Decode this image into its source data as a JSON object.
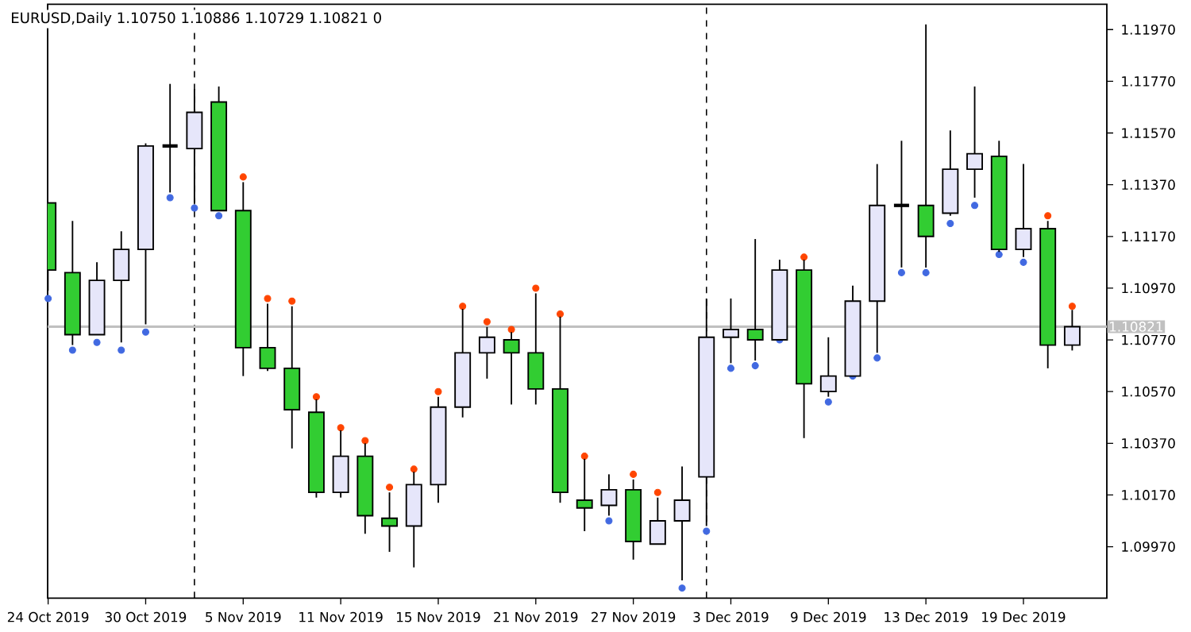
{
  "chart_data": {
    "type": "candlestick",
    "title": "EURUSD,Daily  1.10750 1.10886 1.10729 1.10821  0",
    "categories": [
      "24 Oct 2019",
      null,
      null,
      null,
      "30 Oct 2019",
      null,
      null,
      null,
      "5 Nov 2019",
      null,
      null,
      null,
      "11 Nov 2019",
      null,
      null,
      null,
      "15 Nov 2019",
      null,
      null,
      null,
      "21 Nov 2019",
      null,
      null,
      null,
      "27 Nov 2019",
      null,
      null,
      null,
      "3 Dec 2019",
      null,
      null,
      null,
      "9 Dec 2019",
      null,
      null,
      null,
      "13 Dec 2019",
      null,
      null,
      null,
      "19 Dec 2019",
      null,
      null
    ],
    "ohlc": [
      [
        1.113,
        1.113,
        1.1096,
        1.1104
      ],
      [
        1.1103,
        1.1123,
        1.1075,
        1.1079
      ],
      [
        1.1079,
        1.1107,
        1.1079,
        1.11
      ],
      [
        1.11,
        1.1119,
        1.1076,
        1.1112
      ],
      [
        1.1112,
        1.1153,
        1.1083,
        1.1152
      ],
      [
        1.1152,
        1.1176,
        1.1134,
        1.1152
      ],
      [
        1.1151,
        1.1174,
        1.113,
        1.1165
      ],
      [
        1.1169,
        1.1175,
        1.1127,
        1.1127
      ],
      [
        1.1127,
        1.1138,
        1.1063,
        1.1074
      ],
      [
        1.1074,
        1.1091,
        1.1065,
        1.1066
      ],
      [
        1.1066,
        1.109,
        1.1035,
        1.105
      ],
      [
        1.1049,
        1.1054,
        1.1016,
        1.1018
      ],
      [
        1.1018,
        1.1042,
        1.1016,
        1.1032
      ],
      [
        1.1032,
        1.1037,
        1.1002,
        1.1009
      ],
      [
        1.1008,
        1.1018,
        1.0995,
        1.1005
      ],
      [
        1.1005,
        1.1026,
        1.0989,
        1.1021
      ],
      [
        1.1021,
        1.1055,
        1.1014,
        1.1051
      ],
      [
        1.1051,
        1.1089,
        1.1047,
        1.1072
      ],
      [
        1.1072,
        1.1082,
        1.1062,
        1.1078
      ],
      [
        1.1077,
        1.108,
        1.1052,
        1.1072
      ],
      [
        1.1072,
        1.1095,
        1.1052,
        1.1058
      ],
      [
        1.1058,
        1.1086,
        1.1014,
        1.1018
      ],
      [
        1.1015,
        1.1031,
        1.1003,
        1.1012
      ],
      [
        1.1013,
        1.1025,
        1.1009,
        1.1019
      ],
      [
        1.1019,
        1.1023,
        1.0992,
        1.0999
      ],
      [
        1.0998,
        1.1016,
        1.0998,
        1.1007
      ],
      [
        1.1007,
        1.1028,
        1.0984,
        1.1015
      ],
      [
        1.1024,
        1.1093,
        1.1005,
        1.1078
      ],
      [
        1.1078,
        1.1093,
        1.1068,
        1.1081
      ],
      [
        1.1081,
        1.1116,
        1.1069,
        1.1077
      ],
      [
        1.1077,
        1.1108,
        1.1077,
        1.1104
      ],
      [
        1.1104,
        1.1108,
        1.1039,
        1.106
      ],
      [
        1.1057,
        1.1078,
        1.1055,
        1.1063
      ],
      [
        1.1063,
        1.1098,
        1.1063,
        1.1092
      ],
      [
        1.1092,
        1.1145,
        1.1072,
        1.1129
      ],
      [
        1.1129,
        1.1154,
        1.1105,
        1.1129
      ],
      [
        1.1129,
        1.1199,
        1.1105,
        1.1117
      ],
      [
        1.1126,
        1.1158,
        1.1125,
        1.1143
      ],
      [
        1.1143,
        1.1175,
        1.1132,
        1.1149
      ],
      [
        1.1148,
        1.1154,
        1.1111,
        1.1112
      ],
      [
        1.1112,
        1.1145,
        1.1109,
        1.112
      ],
      [
        1.112,
        1.1123,
        1.1066,
        1.1075
      ],
      [
        1.1075,
        1.10886,
        1.10729,
        1.10821
      ]
    ],
    "colors": [
      "#32cd32",
      "#32cd32",
      "#e6e6fa",
      "#e6e6fa",
      "#e6e6fa",
      "#000000",
      "#e6e6fa",
      "#32cd32",
      "#32cd32",
      "#32cd32",
      "#32cd32",
      "#32cd32",
      "#e6e6fa",
      "#32cd32",
      "#32cd32",
      "#e6e6fa",
      "#e6e6fa",
      "#e6e6fa",
      "#e6e6fa",
      "#32cd32",
      "#32cd32",
      "#32cd32",
      "#32cd32",
      "#e6e6fa",
      "#32cd32",
      "#e6e6fa",
      "#e6e6fa",
      "#e6e6fa",
      "#e6e6fa",
      "#32cd32",
      "#e6e6fa",
      "#32cd32",
      "#e6e6fa",
      "#e6e6fa",
      "#e6e6fa",
      "#000000",
      "#32cd32",
      "#e6e6fa",
      "#e6e6fa",
      "#32cd32",
      "#e6e6fa",
      "#32cd32",
      "#e6e6fa"
    ],
    "series": [
      {
        "type": "scatter",
        "color": "#ff4500",
        "values": [
          null,
          null,
          null,
          null,
          null,
          null,
          null,
          null,
          1.114,
          1.1093,
          1.1092,
          1.1055,
          1.1043,
          1.1038,
          1.102,
          1.1027,
          1.1057,
          1.109,
          1.1084,
          1.1081,
          1.1097,
          1.1087,
          1.1032,
          null,
          1.1025,
          1.1018,
          null,
          null,
          null,
          null,
          null,
          1.1109,
          null,
          null,
          null,
          null,
          null,
          null,
          null,
          null,
          null,
          1.1125,
          1.109
        ]
      },
      {
        "type": "scatter",
        "color": "#4169e1",
        "values": [
          1.1093,
          1.1073,
          1.1076,
          1.1073,
          1.108,
          1.1132,
          1.1128,
          1.1125,
          null,
          null,
          null,
          null,
          null,
          null,
          null,
          null,
          null,
          null,
          null,
          null,
          null,
          null,
          null,
          1.1007,
          null,
          null,
          1.0981,
          1.1003,
          1.1066,
          1.1067,
          1.1077,
          null,
          1.1053,
          1.1063,
          1.107,
          1.1103,
          1.1103,
          1.1122,
          1.1129,
          1.111,
          1.1107,
          null,
          null
        ]
      }
    ],
    "marker": "circle",
    "ylim": [
      1.09771,
      1.12068
    ],
    "yticks": [
      {
        "value": 1.0997,
        "label": "1.09970"
      },
      {
        "value": 1.1017,
        "label": "1.10170"
      },
      {
        "value": 1.1037,
        "label": "1.10370"
      },
      {
        "value": 1.1057,
        "label": "1.10570"
      },
      {
        "value": 1.1077,
        "label": "1.10770"
      },
      {
        "value": 1.1097,
        "label": "1.10970"
      },
      {
        "value": 1.1117,
        "label": "1.11170"
      },
      {
        "value": 1.1137,
        "label": "1.11370"
      },
      {
        "value": 1.1157,
        "label": "1.11570"
      },
      {
        "value": 1.1177,
        "label": "1.11770"
      },
      {
        "value": 1.1197,
        "label": "1.11970"
      }
    ],
    "ref_lines": [
      {
        "axis": "y",
        "value": 1.10821,
        "label": "1.10821",
        "color": "#c0c0c0",
        "line_style": "solid"
      }
    ]
  }
}
